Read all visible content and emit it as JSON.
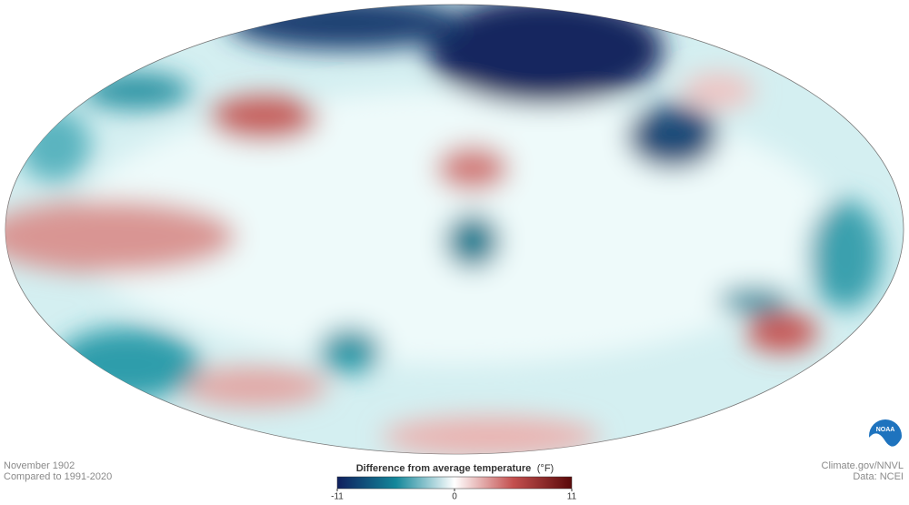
{
  "map": {
    "caption": {
      "date": "November 1902",
      "baseline": "Compared to 1991-2020"
    },
    "legend": {
      "title": "Difference from average temperature",
      "unit": "(°F)",
      "range": [
        -11,
        11
      ],
      "ticks": [
        -11,
        0,
        11
      ],
      "colors": [
        "#0f1f5e",
        "#14879a",
        "#ffffff",
        "#c4504f",
        "#5a0909"
      ]
    },
    "credits": {
      "source": "Climate.gov/NNVL",
      "data": "Data: NCEI"
    },
    "logo": "NOAA"
  }
}
